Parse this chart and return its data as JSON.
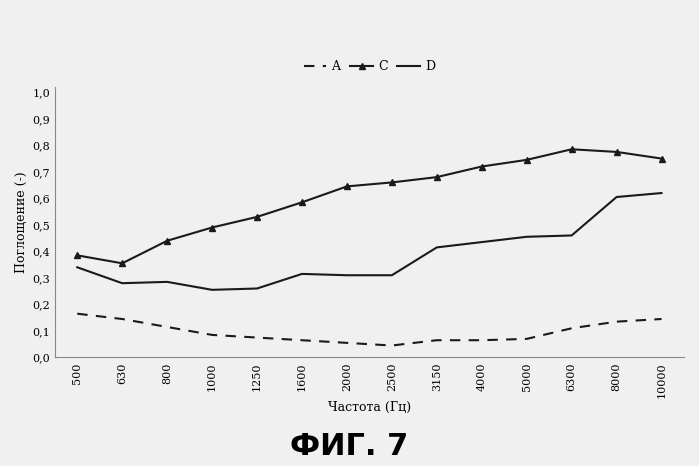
{
  "x_labels": [
    "500",
    "630",
    "800",
    "1000",
    "1250",
    "1600",
    "2000",
    "2500",
    "3150",
    "4000",
    "5000",
    "6300",
    "8000",
    "10000"
  ],
  "x_values": [
    500,
    630,
    800,
    1000,
    1250,
    1600,
    2000,
    2500,
    3150,
    4000,
    5000,
    6300,
    8000,
    10000
  ],
  "series_A": [
    0.165,
    0.145,
    0.115,
    0.085,
    0.075,
    0.065,
    0.055,
    0.045,
    0.065,
    0.065,
    0.07,
    0.11,
    0.135,
    0.145
  ],
  "series_C": [
    0.385,
    0.355,
    0.44,
    0.49,
    0.53,
    0.585,
    0.645,
    0.66,
    0.68,
    0.72,
    0.745,
    0.785,
    0.775,
    0.75
  ],
  "series_D": [
    0.34,
    0.28,
    0.285,
    0.255,
    0.26,
    0.315,
    0.31,
    0.31,
    0.415,
    0.435,
    0.455,
    0.46,
    0.605,
    0.62
  ],
  "ylabel": "Поглощение (-)",
  "xlabel": "Частота (Гц)",
  "title_fig": "ФИГ. 7",
  "ylim": [
    0.0,
    1.0
  ],
  "yticks": [
    0.0,
    0.1,
    0.2,
    0.3,
    0.4,
    0.5,
    0.6,
    0.7,
    0.8,
    0.9,
    1.0
  ],
  "ytick_labels": [
    "0,0",
    "0,1",
    "0,2",
    "0,3",
    "0,4",
    "0,5",
    "0,6",
    "0,7",
    "0,8",
    "0,9",
    "1,0"
  ],
  "line_color": "#1a1a1a",
  "bg_color": "#f0f0f0",
  "legend_A": "A",
  "legend_C": "C",
  "legend_D": "D",
  "legend_labels": [
    "A",
    "C",
    "D"
  ],
  "title_fontsize": 22,
  "axis_fontsize": 9,
  "tick_fontsize": 8,
  "legend_fontsize": 9
}
